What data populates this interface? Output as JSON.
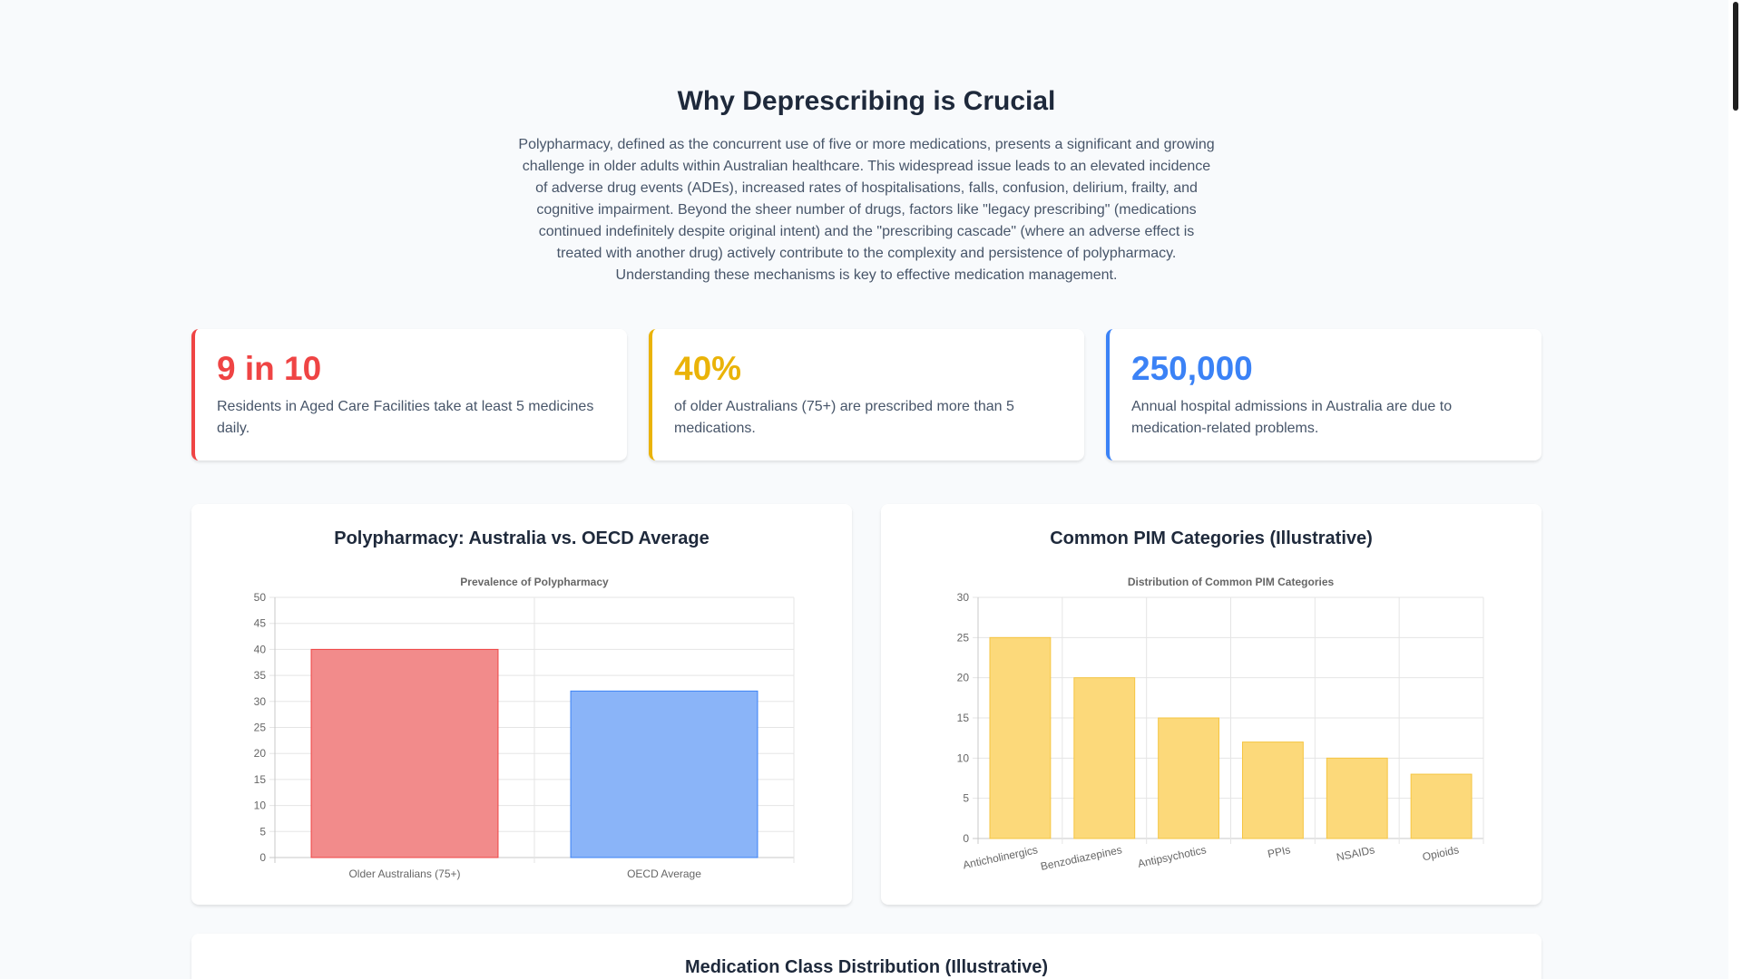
{
  "section": {
    "title": "Why Deprescribing is Crucial",
    "intro": "Polypharmacy, defined as the concurrent use of five or more medications, presents a significant and growing challenge in older adults within Australian healthcare. This widespread issue leads to an elevated incidence of adverse drug events (ADEs), increased rates of hospitalisations, falls, confusion, delirium, frailty, and cognitive impairment. Beyond the sheer number of drugs, factors like \"legacy prescribing\" (medications continued indefinitely despite original intent) and the \"prescribing cascade\" (where an adverse effect is treated with another drug) actively contribute to the complexity and persistence of polypharmacy. Understanding these mechanisms is key to effective medication management."
  },
  "stats": [
    {
      "value": "9 in 10",
      "desc": "Residents in Aged Care Facilities take at least 5 medicines daily.",
      "color": "#ef4444"
    },
    {
      "value": "40%",
      "desc": "of older Australians (75+) are prescribed more than 5 medications.",
      "color": "#eab308"
    },
    {
      "value": "250,000",
      "desc": "Annual hospital admissions in Australia are due to medication-related problems.",
      "color": "#3b82f6"
    }
  ],
  "charts": {
    "polypharmacy_card_title": "Polypharmacy: Australia vs. OECD Average",
    "pim_card_title": "Common PIM Categories (Illustrative)",
    "medication_class_card_title": "Medication Class Distribution (Illustrative)"
  },
  "chart_data": [
    {
      "type": "bar",
      "title": "Prevalence of Polypharmacy",
      "categories": [
        "Older Australians (75+)",
        "OECD Average"
      ],
      "values": [
        40,
        32
      ],
      "colors": [
        "#f28b8b",
        "#8ab4f8"
      ],
      "border_colors": [
        "#ef4444",
        "#3b82f6"
      ],
      "ylim": [
        0,
        50
      ],
      "yticks": [
        0,
        5,
        10,
        15,
        20,
        25,
        30,
        35,
        40,
        45,
        50
      ],
      "xlabel": "",
      "ylabel": "",
      "grid": true,
      "legend": "none"
    },
    {
      "type": "bar",
      "title": "Distribution of Common PIM Categories",
      "categories": [
        "Anticholinergics",
        "Benzodiazepines",
        "Antipsychotics",
        "PPIs",
        "NSAIDs",
        "Opioids"
      ],
      "values": [
        25,
        20,
        15,
        12,
        10,
        8
      ],
      "color": "#fcd97a",
      "border_color": "#f5c542",
      "ylim": [
        0,
        30
      ],
      "yticks": [
        0,
        5,
        10,
        15,
        20,
        25,
        30
      ],
      "xlabel": "",
      "ylabel": "",
      "grid": true,
      "legend": "none"
    }
  ]
}
